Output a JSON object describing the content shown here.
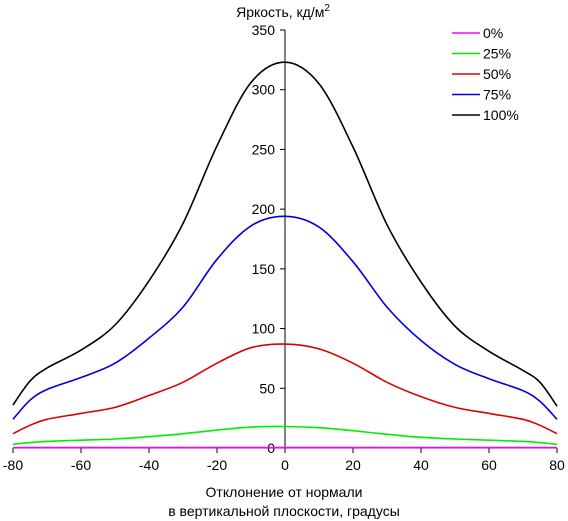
{
  "chart_data": {
    "type": "line",
    "ylabel": "Яркость, кд/м",
    "ylabel_superscript": "2",
    "xlabel_line1": "Отклонение от нормали",
    "xlabel_line2": "в вертикальной плоскости, градусы",
    "xlim": [
      -80,
      80
    ],
    "ylim": [
      0,
      350
    ],
    "x_ticks": [
      "-80",
      "-60",
      "-40",
      "-20",
      "0",
      "20",
      "40",
      "60",
      "80"
    ],
    "y_ticks": [
      "0",
      "50",
      "100",
      "150",
      "200",
      "250",
      "300",
      "350"
    ],
    "grid": false,
    "legend_position": "top-right",
    "x": [
      -80,
      -75,
      -70,
      -60,
      -50,
      -40,
      -30,
      -20,
      -10,
      0,
      10,
      20,
      30,
      40,
      50,
      60,
      70,
      75,
      80
    ],
    "series": [
      {
        "name": "0%",
        "color": "#ff00ff",
        "values": [
          0.3,
          0.3,
          0.3,
          0.3,
          0.3,
          0.3,
          0.3,
          0.3,
          0.3,
          0.3,
          0.3,
          0.3,
          0.3,
          0.3,
          0.3,
          0.3,
          0.3,
          0.3,
          0.3
        ]
      },
      {
        "name": "25%",
        "color": "#00ee00",
        "values": [
          3,
          4.5,
          5.5,
          6.5,
          7.5,
          9.5,
          12,
          15,
          17.5,
          18,
          17,
          14.5,
          11.5,
          9,
          7.5,
          6.5,
          5.5,
          4.5,
          3
        ]
      },
      {
        "name": "50%",
        "color": "#dd0000",
        "values": [
          12,
          19,
          24,
          29,
          34,
          44,
          55,
          71,
          84,
          87,
          83,
          71,
          55,
          43,
          34,
          29,
          24,
          19,
          12
        ]
      },
      {
        "name": "75%",
        "color": "#0000dd",
        "values": [
          24,
          40,
          49,
          59,
          71,
          92,
          118,
          158,
          186,
          194,
          185,
          156,
          118,
          90,
          70,
          58,
          48,
          39,
          24
        ]
      },
      {
        "name": "100%",
        "color": "#000000",
        "values": [
          36,
          56,
          67,
          82,
          103,
          140,
          188,
          253,
          306,
          323,
          305,
          252,
          187,
          139,
          102,
          81,
          65,
          55,
          35
        ]
      }
    ]
  }
}
